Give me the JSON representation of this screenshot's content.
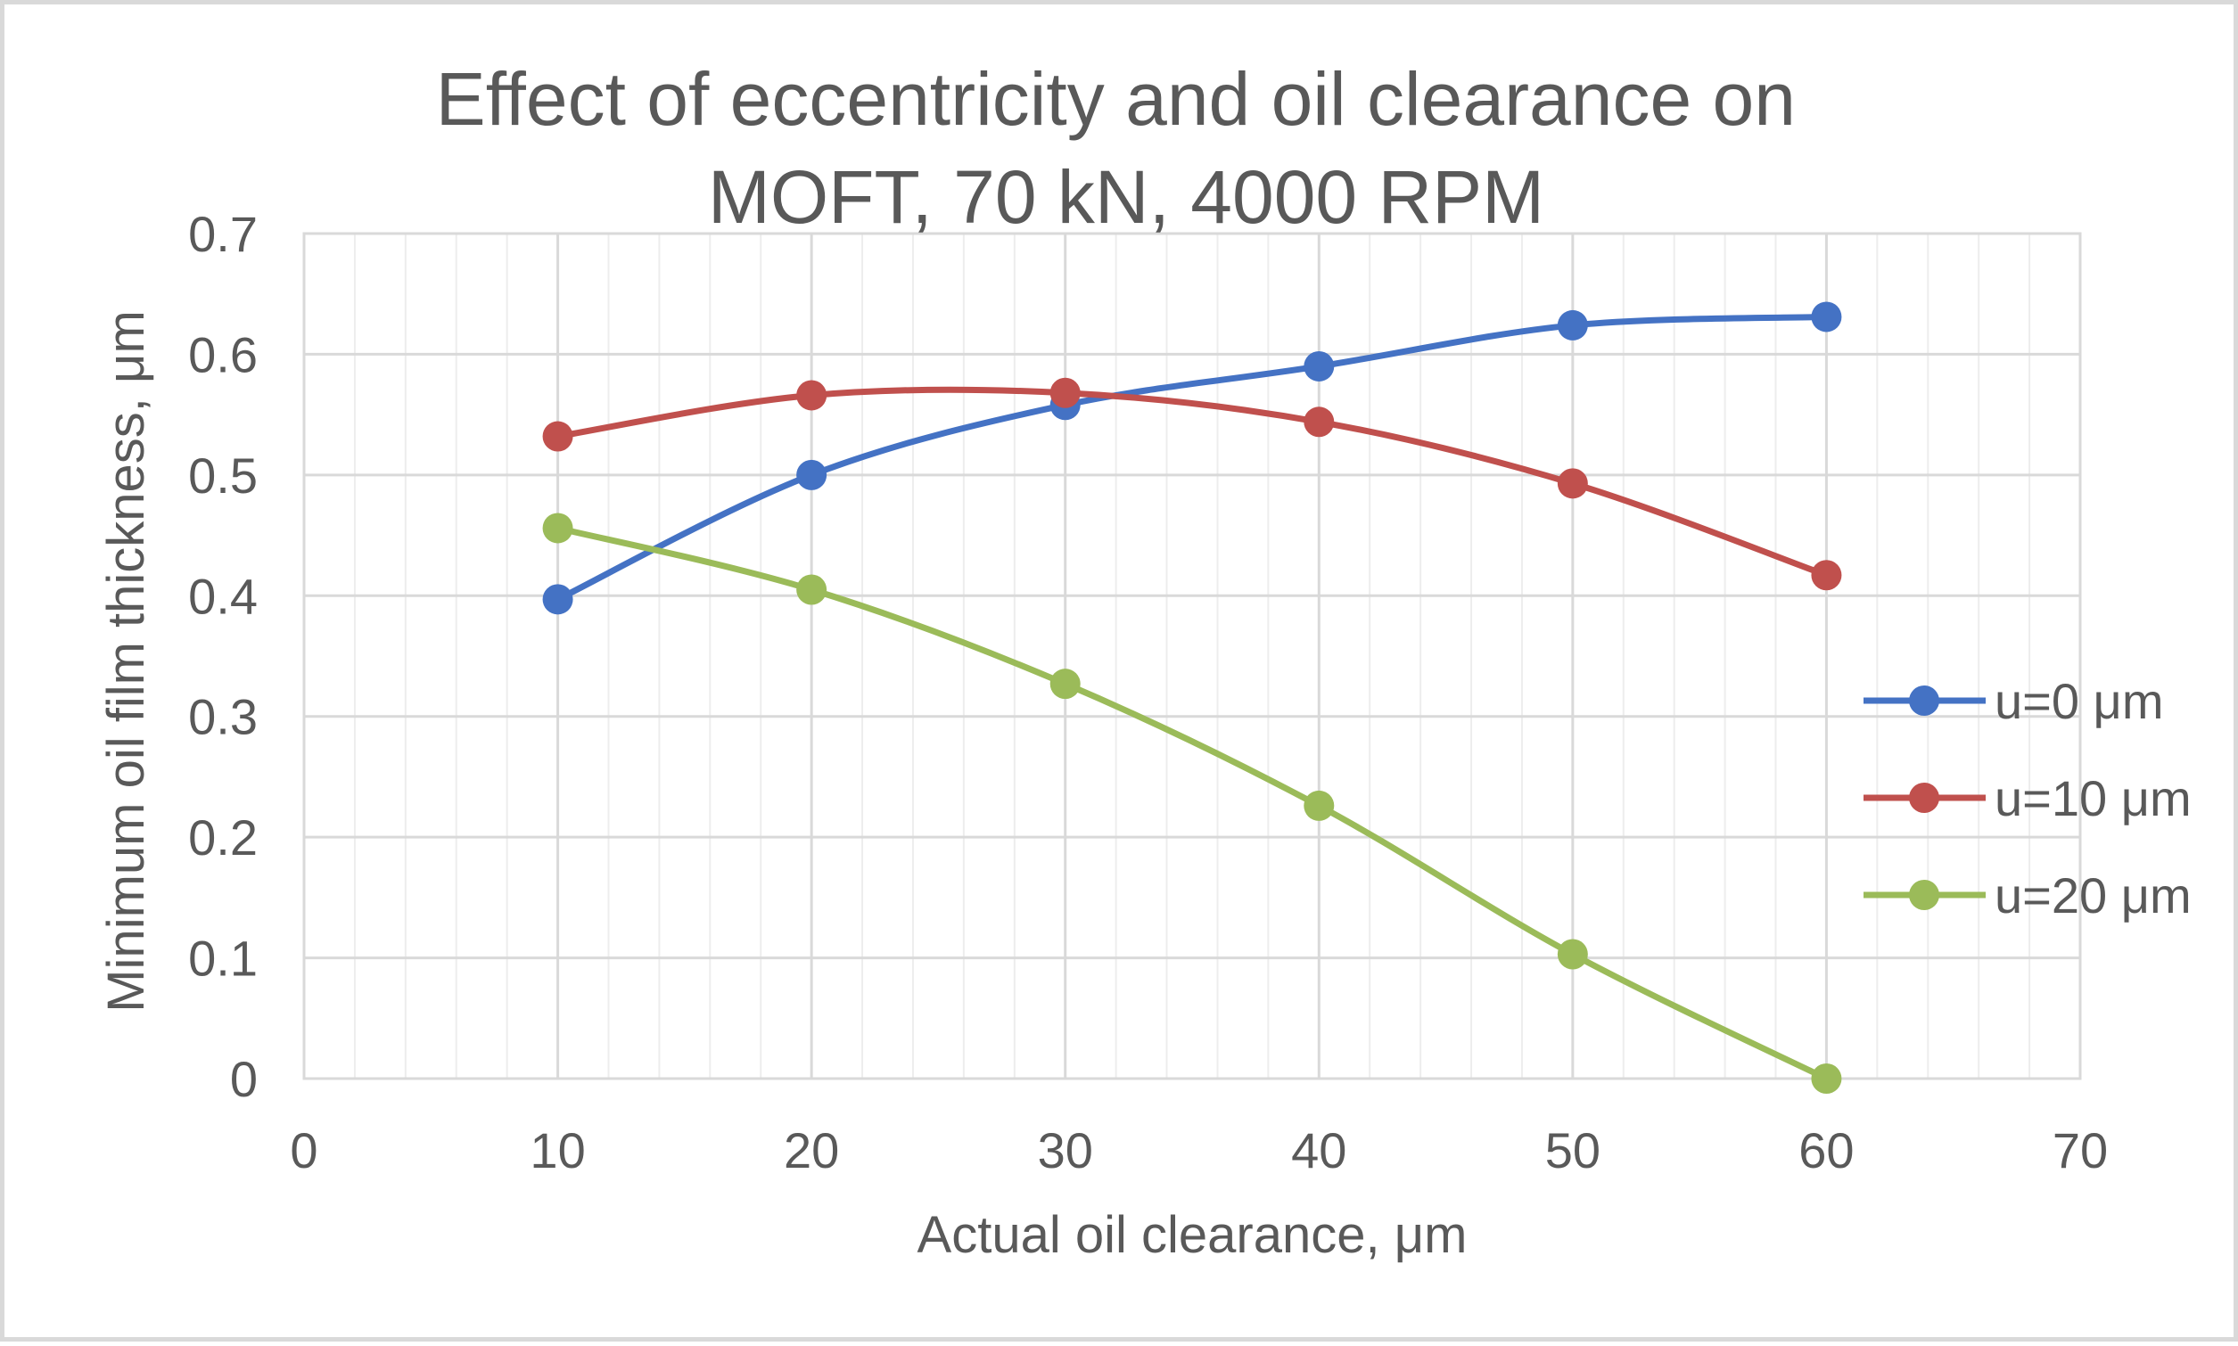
{
  "chart_data": {
    "type": "line",
    "title": [
      "Effect of eccentricity and oil clearance on",
      "MOFT, 70 kN, 4000 RPM"
    ],
    "xlabel": "Actual oil clearance, μm",
    "ylabel": "Minimum oil film thickness, μm",
    "xlim": [
      0,
      70
    ],
    "ylim": [
      0,
      0.7
    ],
    "x_major_step": 10,
    "x_minor_step": 2,
    "y_major_step": 0.1,
    "x_tick_labels": [
      "0",
      "10",
      "20",
      "30",
      "40",
      "50",
      "60",
      "70"
    ],
    "y_tick_labels": [
      "0",
      "0.1",
      "0.2",
      "0.3",
      "0.4",
      "0.5",
      "0.6",
      "0.7"
    ],
    "grid": true,
    "smooth": true,
    "legend_position": "right",
    "x": [
      10,
      20,
      30,
      40,
      50,
      60
    ],
    "series": [
      {
        "name": "u=0 μm",
        "color": "#4472c4",
        "values": [
          0.397,
          0.5,
          0.558,
          0.59,
          0.624,
          0.631
        ]
      },
      {
        "name": "u=10 μm",
        "color": "#c0504d",
        "values": [
          0.532,
          0.566,
          0.568,
          0.544,
          0.493,
          0.417
        ]
      },
      {
        "name": "u=20 μm",
        "color": "#9bbb59",
        "values": [
          0.456,
          0.405,
          0.327,
          0.226,
          0.103,
          0.0
        ]
      }
    ]
  }
}
